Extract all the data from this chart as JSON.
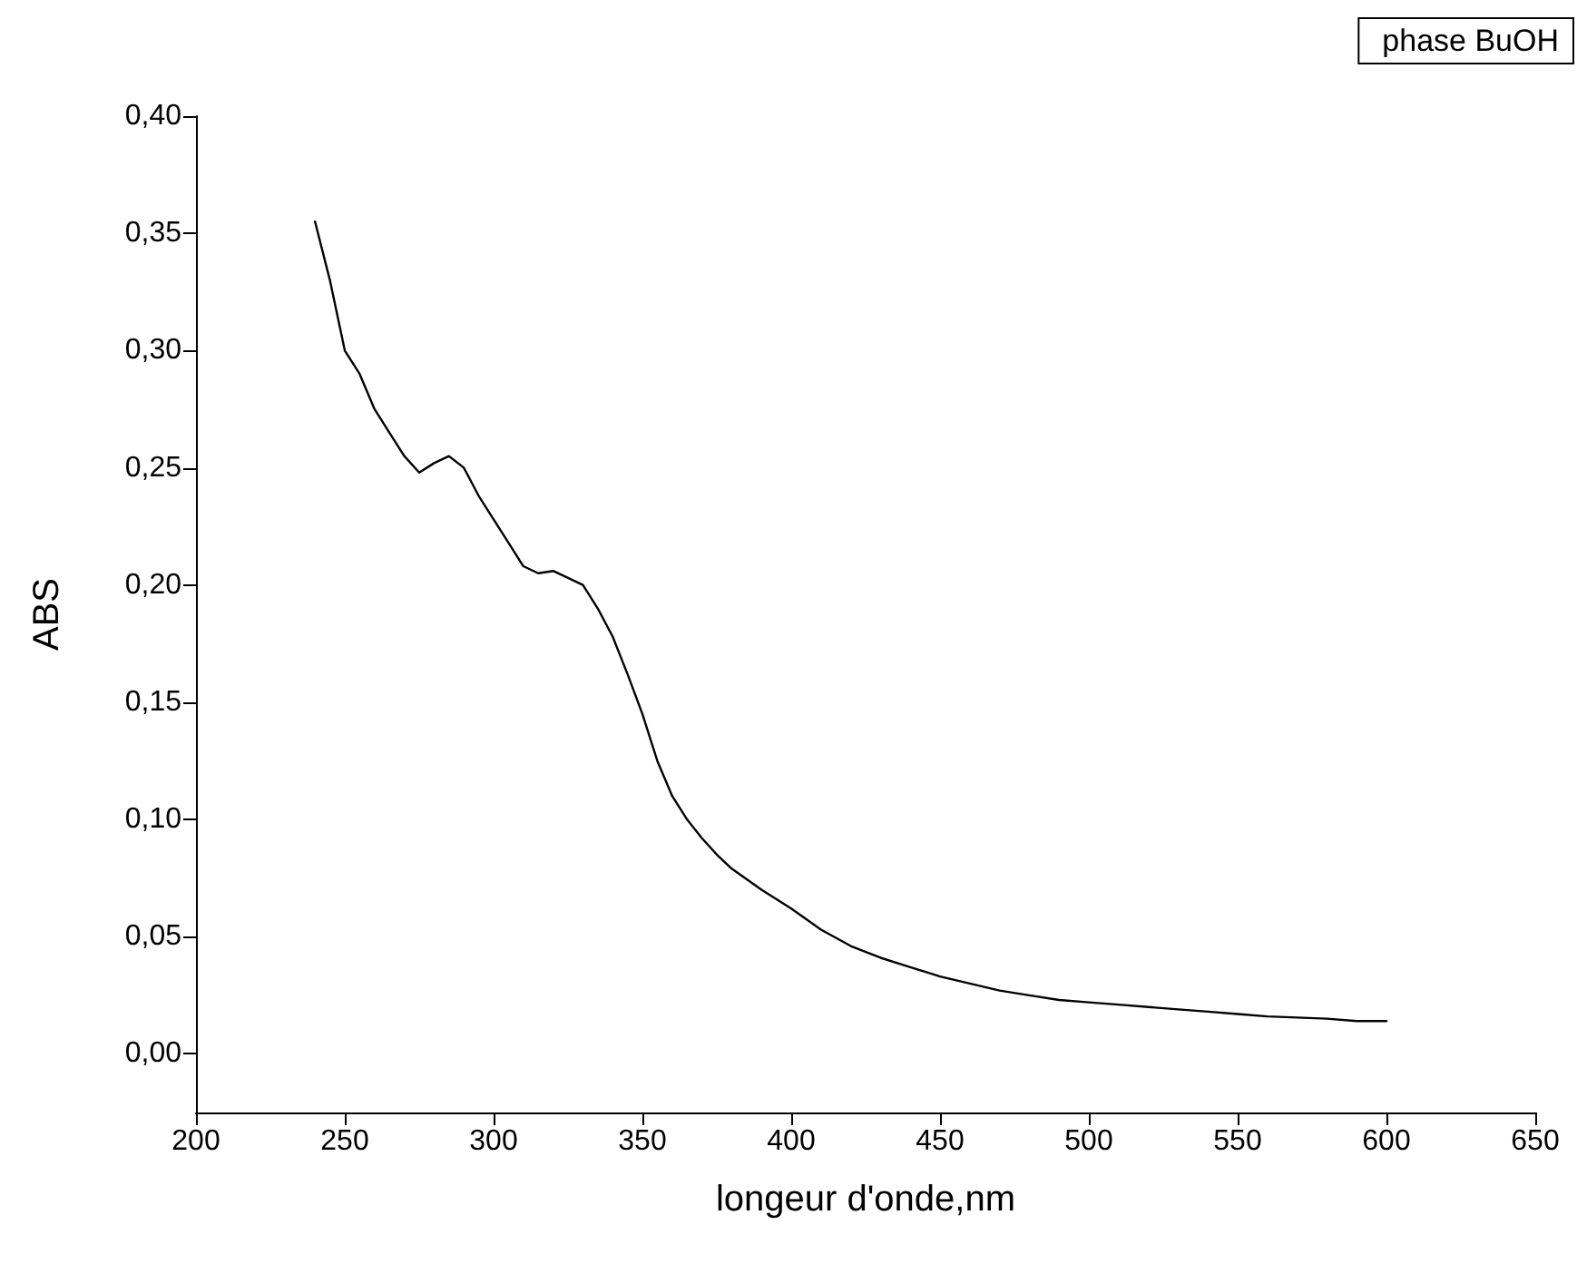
{
  "chart_data": {
    "type": "line",
    "xlabel": "longeur d'onde,nm",
    "ylabel": "ABS",
    "x": [
      240,
      245,
      250,
      255,
      260,
      265,
      270,
      275,
      280,
      285,
      290,
      295,
      300,
      305,
      310,
      315,
      320,
      325,
      330,
      335,
      340,
      345,
      350,
      355,
      360,
      365,
      370,
      375,
      380,
      390,
      400,
      410,
      420,
      430,
      440,
      450,
      460,
      470,
      480,
      490,
      500,
      510,
      520,
      530,
      540,
      550,
      560,
      570,
      580,
      590,
      600
    ],
    "series": [
      {
        "name": "phase BuOH",
        "color": "#000000",
        "values": [
          0.355,
          0.33,
          0.3,
          0.29,
          0.275,
          0.265,
          0.255,
          0.248,
          0.252,
          0.255,
          0.25,
          0.238,
          0.228,
          0.218,
          0.208,
          0.205,
          0.206,
          0.203,
          0.2,
          0.19,
          0.178,
          0.162,
          0.145,
          0.125,
          0.11,
          0.1,
          0.092,
          0.085,
          0.079,
          0.07,
          0.062,
          0.053,
          0.046,
          0.041,
          0.037,
          0.033,
          0.03,
          0.027,
          0.025,
          0.023,
          0.022,
          0.021,
          0.02,
          0.019,
          0.018,
          0.017,
          0.016,
          0.0155,
          0.015,
          0.014,
          0.014
        ]
      }
    ],
    "xlim": [
      200,
      650
    ],
    "xticks": [
      200,
      250,
      300,
      350,
      400,
      450,
      500,
      550,
      600,
      650
    ],
    "ylim": [
      -0.025,
      0.4
    ],
    "yticks": [
      {
        "value": 0,
        "label": "0,00"
      },
      {
        "value": 0.05,
        "label": "0,05"
      },
      {
        "value": 0.1,
        "label": "0,10"
      },
      {
        "value": 0.15,
        "label": "0,15"
      },
      {
        "value": 0.2,
        "label": "0,20"
      },
      {
        "value": 0.25,
        "label": "0,25"
      },
      {
        "value": 0.3,
        "label": "0,30"
      },
      {
        "value": 0.35,
        "label": "0,35"
      },
      {
        "value": 0.4,
        "label": "0,40"
      }
    ],
    "grid": false,
    "legend": "top right",
    "marker": "none",
    "line_style": "solid"
  }
}
